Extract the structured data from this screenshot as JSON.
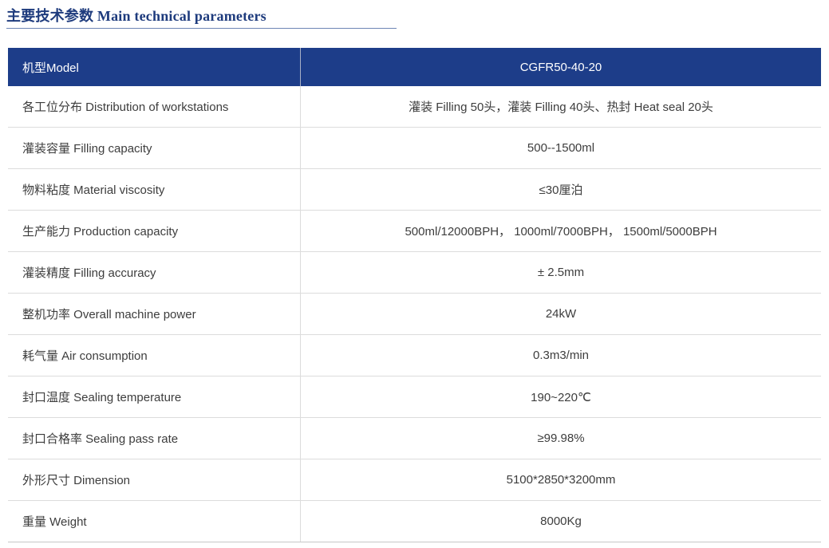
{
  "title": {
    "zh": "主要技术参数",
    "en": "Main technical parameters"
  },
  "colors": {
    "header_background": "#1d3d89",
    "header_text": "#ffffff",
    "title_text": "#1e3b7d",
    "title_underline": "#6d85b5",
    "row_divider": "#dcdcdc",
    "body_text": "#3d3d3d"
  },
  "table": {
    "header": {
      "label": "机型Model",
      "value": "CGFR50-40-20"
    },
    "rows": [
      {
        "label": "各工位分布 Distribution of workstations",
        "value": "灌装 Filling 50头，灌装 Filling 40头、热封 Heat seal 20头"
      },
      {
        "label": "灌装容量 Filling capacity",
        "value": "500--1500ml"
      },
      {
        "label": "物料粘度 Material viscosity",
        "value": "≤30厘泊"
      },
      {
        "label": "生产能力 Production capacity",
        "value": "500ml/12000BPH， 1000ml/7000BPH， 1500ml/5000BPH"
      },
      {
        "label": "灌装精度 Filling accuracy",
        "value": "± 2.5mm"
      },
      {
        "label": "整机功率 Overall machine power",
        "value": "24kW"
      },
      {
        "label": "耗气量 Air consumption",
        "value": "0.3m3/min"
      },
      {
        "label": "封口温度 Sealing temperature",
        "value": "190~220℃"
      },
      {
        "label": "封口合格率 Sealing pass rate",
        "value": "≥99.98%"
      },
      {
        "label": "外形尺寸 Dimension",
        "value": "5100*2850*3200mm"
      },
      {
        "label": "重量 Weight",
        "value": "8000Kg"
      }
    ]
  }
}
